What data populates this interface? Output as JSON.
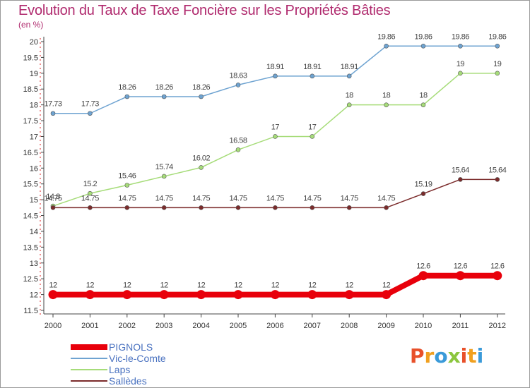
{
  "header": {
    "title": "Evolution du Taux de Taxe Foncière sur les Propriétés Bâties",
    "unit": "(en %)"
  },
  "logo": {
    "text": "Proxiti",
    "colors": [
      "#e8502a",
      "#f0a020",
      "#3a9ad9",
      "#8cc63e"
    ]
  },
  "chart_data": {
    "type": "line",
    "title": "Evolution du Taux de Taxe Foncière sur les Propriétés Bâties",
    "ylabel": "(en %)",
    "xlabel": "",
    "x": [
      "2000",
      "2001",
      "2002",
      "2003",
      "2004",
      "2005",
      "2006",
      "2007",
      "2008",
      "2009",
      "2010",
      "2011",
      "2012"
    ],
    "ylim": [
      11.5,
      20
    ],
    "yticks": [
      "11.5",
      "12",
      "12.5",
      "13",
      "13.5",
      "14",
      "14.5",
      "15",
      "15.5",
      "16",
      "16.5",
      "17",
      "17.5",
      "18",
      "18.5",
      "19",
      "19.5",
      "20"
    ],
    "grid": false,
    "legend": "bottom-left",
    "series": [
      {
        "name": "PIGNOLS",
        "color": "#e8000b",
        "values": [
          12,
          12,
          12,
          12,
          12,
          12,
          12,
          12,
          12,
          12,
          12.6,
          12.6,
          12.6
        ],
        "labels": [
          "12",
          "12",
          "12",
          "12",
          "12",
          "12",
          "12",
          "12",
          "12",
          "12",
          "12.6",
          "12.6",
          "12.6"
        ]
      },
      {
        "name": "Vic-le-Comte",
        "color": "#6ea3d1",
        "values": [
          17.73,
          17.73,
          18.26,
          18.26,
          18.26,
          18.63,
          18.91,
          18.91,
          18.91,
          19.86,
          19.86,
          19.86,
          19.86
        ],
        "labels": [
          "17.73",
          "17.73",
          "18.26",
          "18.26",
          "18.26",
          "18.63",
          "18.91",
          "18.91",
          "18.91",
          "19.86",
          "19.86",
          "19.86",
          "19.86"
        ]
      },
      {
        "name": "Laps",
        "color": "#a6dc79",
        "values": [
          14.8,
          15.2,
          15.46,
          15.74,
          16.02,
          16.58,
          17,
          17,
          18,
          18,
          18,
          19,
          19
        ],
        "labels": [
          "14.8",
          "15.2",
          "15.46",
          "15.74",
          "16.02",
          "16.58",
          "17",
          "17",
          "18",
          "18",
          "18",
          "19",
          "19"
        ]
      },
      {
        "name": "Sallèdes",
        "color": "#7b2b2b",
        "values": [
          14.75,
          14.75,
          14.75,
          14.75,
          14.75,
          14.75,
          14.75,
          14.75,
          14.75,
          14.75,
          15.19,
          15.64,
          15.64
        ],
        "labels": [
          "14.75",
          "14.75",
          "14.75",
          "14.75",
          "14.75",
          "14.75",
          "14.75",
          "14.75",
          "14.75",
          "14.75",
          "15.19",
          "15.64",
          "15.64"
        ]
      }
    ]
  }
}
